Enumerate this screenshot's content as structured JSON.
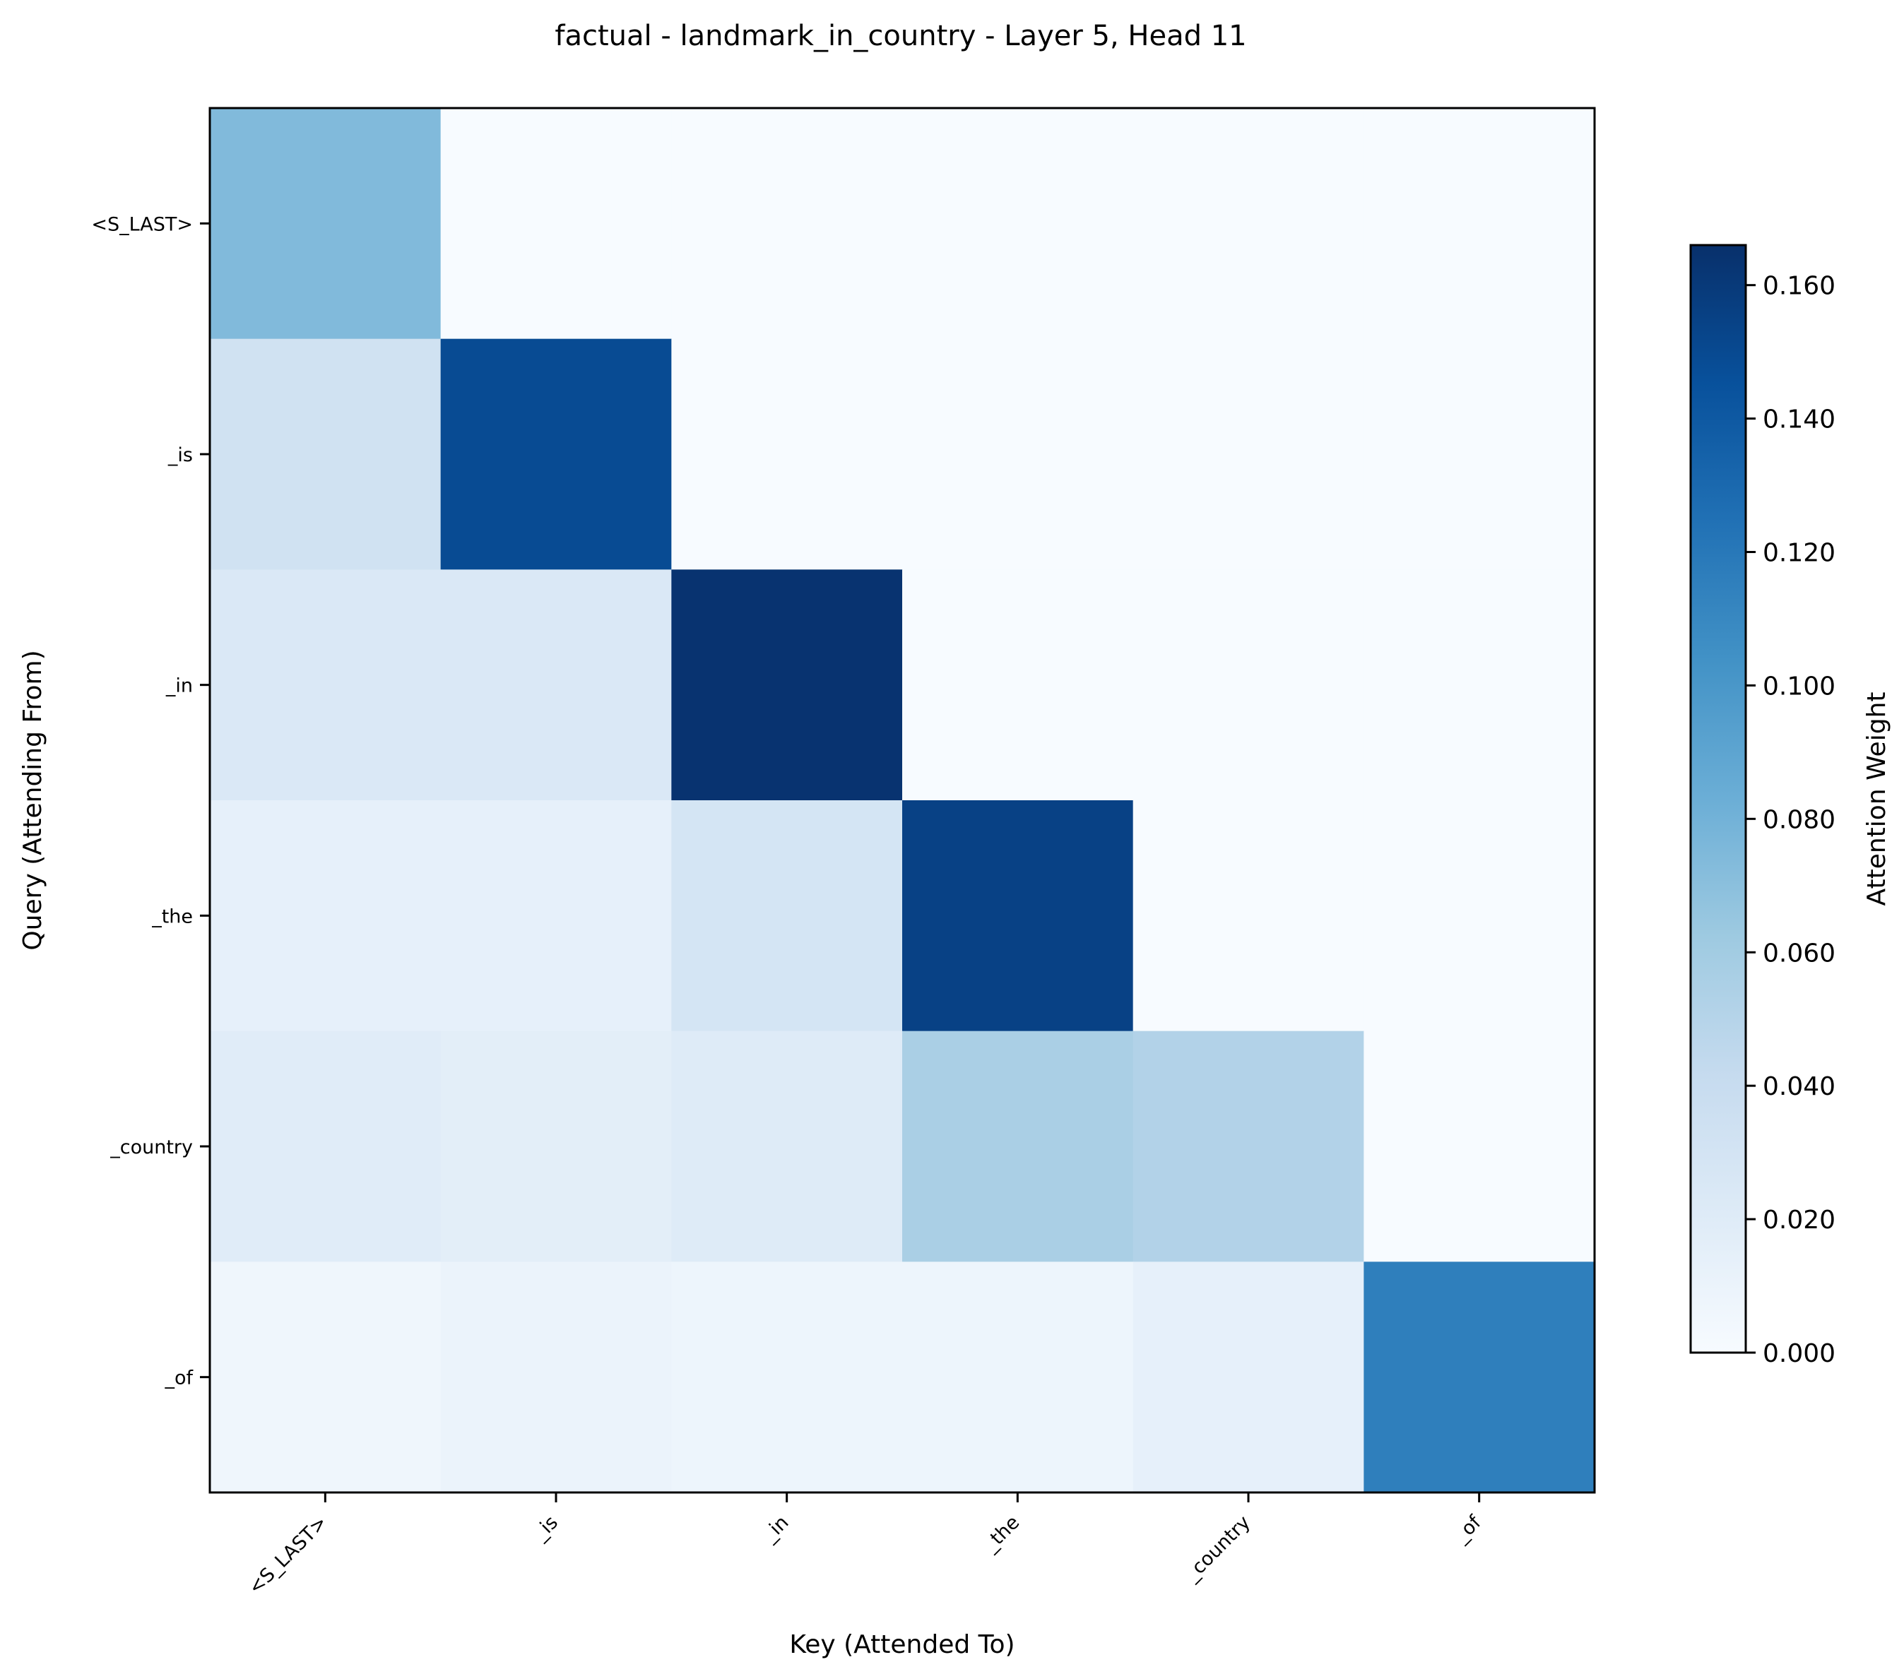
{
  "chart_data": {
    "type": "heatmap",
    "title": "factual - landmark_in_country - Layer 5, Head 11",
    "xlabel": "Key (Attended To)",
    "ylabel": "Query (Attending From)",
    "x_categories": [
      "<S_LAST>",
      "_is",
      "_in",
      "_the",
      "_country",
      "_of"
    ],
    "y_categories": [
      "<S_LAST>",
      "_is",
      "_in",
      "_the",
      "_country",
      "_of"
    ],
    "values": [
      [
        0.074,
        0.0,
        0.0,
        0.0,
        0.0,
        0.0
      ],
      [
        0.033,
        0.149,
        0.0,
        0.0,
        0.0,
        0.0
      ],
      [
        0.024,
        0.024,
        0.164,
        0.0,
        0.0,
        0.0
      ],
      [
        0.014,
        0.014,
        0.029,
        0.155,
        0.0,
        0.0
      ],
      [
        0.019,
        0.017,
        0.021,
        0.056,
        0.052,
        0.0
      ],
      [
        0.007,
        0.01,
        0.008,
        0.008,
        0.014,
        0.116
      ]
    ],
    "colorbar": {
      "label": "Attention Weight",
      "min": 0.0,
      "max": 0.166,
      "ticks": [
        0.0,
        0.02,
        0.04,
        0.06,
        0.08,
        0.1,
        0.12,
        0.14,
        0.16
      ],
      "tick_labels": [
        "0.000",
        "0.020",
        "0.040",
        "0.060",
        "0.080",
        "0.100",
        "0.120",
        "0.140",
        "0.160"
      ],
      "colormap": "Blues"
    }
  }
}
